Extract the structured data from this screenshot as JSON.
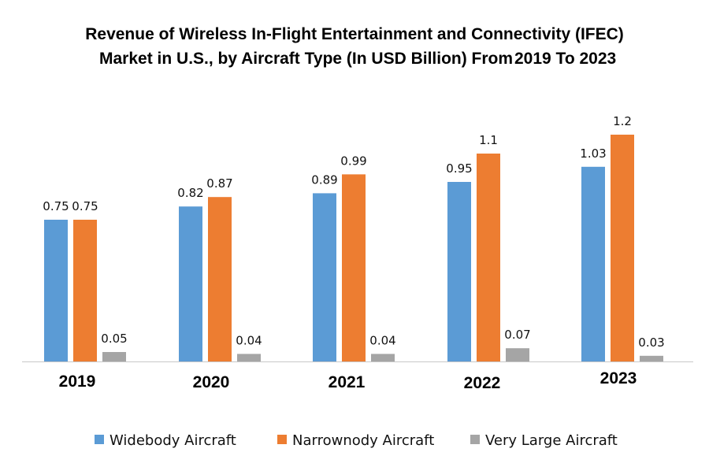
{
  "chart_data": {
    "type": "bar",
    "title_line1": "Revenue of Wireless In-Flight Entertainment and Connectivity (IFEC)",
    "title_line2": "Market in U.S., by Aircraft Type (In USD Billion) From",
    "title_years": "2019 To 2023",
    "xlabel": "",
    "ylabel": "",
    "ylim": [
      0,
      1.3
    ],
    "grid": false,
    "legend_position": "bottom",
    "categories": [
      "2019",
      "2020",
      "2021",
      "2022",
      "2023"
    ],
    "series": [
      {
        "name": "Widebody Aircraft",
        "color": "#5b9bd5",
        "values": [
          0.75,
          0.82,
          0.89,
          0.95,
          1.03
        ],
        "labels": [
          "0.75",
          "0.82",
          "0.89",
          "0.95",
          "1.03"
        ]
      },
      {
        "name": "Narrownody Aircraft",
        "color": "#ed7d31",
        "values": [
          0.75,
          0.87,
          0.99,
          1.1,
          1.2
        ],
        "labels": [
          "0.75",
          "0.87",
          "0.99",
          "1.1",
          "1.2"
        ]
      },
      {
        "name": "Very Large Aircraft",
        "color": "#a5a5a5",
        "values": [
          0.05,
          0.04,
          0.04,
          0.07,
          0.03
        ],
        "labels": [
          "0.05",
          "0.04",
          "0.04",
          "0.07",
          "0.03"
        ]
      }
    ]
  }
}
